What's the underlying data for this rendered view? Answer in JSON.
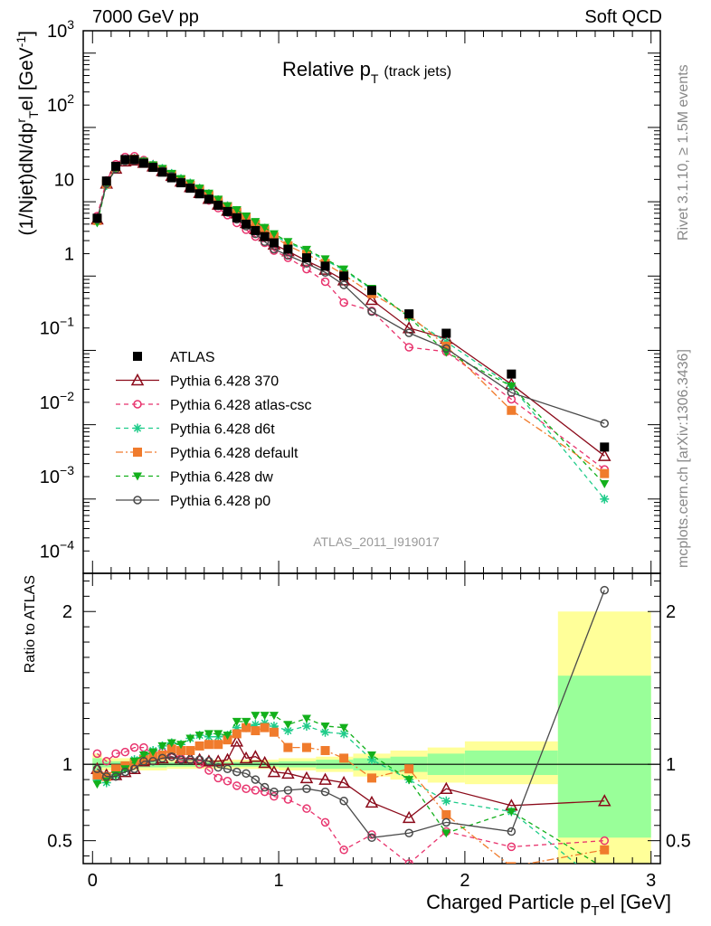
{
  "header": {
    "left": "7000 GeV pp",
    "right": "Soft QCD"
  },
  "side_labels": {
    "rivet": "Rivet 3.1.10, ≥ 1.5M events",
    "mcplots": "mcplots.cern.ch [arXiv:1306.3436]"
  },
  "colors": {
    "ATLAS": "#000000",
    "370": "#8b0a1a",
    "atlas-csc": "#e8336d",
    "d6t": "#1fcc8a",
    "default": "#f07b2c",
    "dw": "#13b01c",
    "p0": "#4a4a4a",
    "band_yellow": "#ffff99",
    "band_green": "#99ff99"
  },
  "chart_data": {
    "type": "line",
    "title_main": "Relative p",
    "title_sub": "T",
    "title_paren": "(track jets)",
    "analysis_id": "ATLAS_2011_I919017",
    "xlabel": "Charged Particle p",
    "xlabel_sub": "T",
    "xlabel_tail": "el [GeV]",
    "ylabel": "(1/Njet)dN/dp",
    "ylabel_sup": "r",
    "ylabel_sub": "T",
    "ylabel_tail": "el [GeV",
    "ylabel_exp": "-1",
    "ylabel_end": "]",
    "ratio_ylabel": "Ratio to ATLAS",
    "xlim": [
      -0.05,
      3.05
    ],
    "ylim": [
      5e-05,
      1000
    ],
    "yscale": "log",
    "ratio_ylim": [
      0.35,
      2.25
    ],
    "x_ticks": [
      "0",
      "1",
      "2",
      "3"
    ],
    "y_ticks": [
      "10^-4",
      "10^-3",
      "10^-2",
      "10^-1",
      "1",
      "10",
      "10^2",
      "10^3"
    ],
    "ratio_ticks": [
      "0.5",
      "1",
      "2"
    ],
    "legend_position": "center-left",
    "x": [
      0.025,
      0.075,
      0.125,
      0.175,
      0.225,
      0.275,
      0.325,
      0.375,
      0.425,
      0.475,
      0.525,
      0.575,
      0.625,
      0.675,
      0.725,
      0.775,
      0.825,
      0.875,
      0.925,
      0.975,
      1.05,
      1.15,
      1.25,
      1.35,
      1.5,
      1.7,
      1.9,
      2.25,
      2.75
    ],
    "series": [
      {
        "name": "ATLAS",
        "marker": "square-filled",
        "line": "none",
        "values": [
          3.0,
          9.5,
          15.0,
          18.5,
          18.5,
          16.5,
          14.5,
          12.5,
          10.5,
          9.0,
          7.6,
          6.4,
          5.4,
          4.5,
          3.7,
          3.05,
          2.5,
          2.05,
          1.7,
          1.4,
          1.15,
          0.88,
          0.68,
          0.5,
          0.32,
          0.155,
          0.085,
          0.024,
          0.0025
        ]
      },
      {
        "name": "Pythia 6.428 370",
        "marker": "triangle-open",
        "line": "solid",
        "values": [
          2.9,
          8.8,
          14.0,
          17.5,
          18.0,
          16.8,
          15.0,
          13.0,
          11.2,
          9.4,
          7.9,
          6.6,
          5.5,
          4.6,
          3.8,
          3.5,
          2.6,
          2.15,
          1.72,
          1.33,
          1.08,
          0.8,
          0.61,
          0.44,
          0.24,
          0.1,
          0.072,
          0.0175,
          0.0019
        ]
      },
      {
        "name": "Pythia 6.428 atlas-csc",
        "marker": "circle-open",
        "line": "dashed",
        "values": [
          3.2,
          9.7,
          16.0,
          20.0,
          20.5,
          18.2,
          15.5,
          13.5,
          11.0,
          9.4,
          7.8,
          6.4,
          5.2,
          4.1,
          3.3,
          2.6,
          2.1,
          1.7,
          1.4,
          1.1,
          0.88,
          0.62,
          0.42,
          0.22,
          0.17,
          0.055,
          0.048,
          0.011,
          0.00125
        ]
      },
      {
        "name": "Pythia 6.428 d6t",
        "marker": "star",
        "line": "dashed",
        "values": [
          2.7,
          8.3,
          14.0,
          18.0,
          19.0,
          17.5,
          15.8,
          14.0,
          12.0,
          10.2,
          8.9,
          7.6,
          6.4,
          5.3,
          4.4,
          3.8,
          3.1,
          2.6,
          2.2,
          1.75,
          1.4,
          1.1,
          0.82,
          0.6,
          0.33,
          0.14,
          0.065,
          0.0165,
          0.0005
        ]
      },
      {
        "name": "Pythia 6.428 default",
        "marker": "square-filled",
        "line": "dashdot",
        "values": [
          2.8,
          8.7,
          14.5,
          18.3,
          18.7,
          17.0,
          15.2,
          13.3,
          11.5,
          9.8,
          8.3,
          7.2,
          6.1,
          5.1,
          4.3,
          3.65,
          3.1,
          2.5,
          2.1,
          1.7,
          1.28,
          0.98,
          0.74,
          0.52,
          0.29,
          0.15,
          0.057,
          0.0078,
          0.0011
        ]
      },
      {
        "name": "Pythia 6.428 dw",
        "marker": "triangle-down-filled",
        "line": "dashed",
        "values": [
          2.6,
          8.5,
          14.0,
          17.9,
          18.9,
          17.5,
          15.6,
          14.0,
          12.0,
          10.2,
          8.9,
          7.6,
          6.5,
          5.4,
          4.4,
          3.9,
          3.2,
          2.7,
          2.25,
          1.85,
          1.45,
          1.14,
          0.85,
          0.62,
          0.34,
          0.14,
          0.047,
          0.0165,
          0.0008
        ]
      },
      {
        "name": "Pythia 6.428 p0",
        "marker": "circle-open",
        "line": "solid",
        "values": [
          2.9,
          8.7,
          13.8,
          17.6,
          17.9,
          16.8,
          14.8,
          13.0,
          11.0,
          9.3,
          7.8,
          6.6,
          5.5,
          4.4,
          3.6,
          2.9,
          2.35,
          1.85,
          1.45,
          1.15,
          0.95,
          0.74,
          0.56,
          0.38,
          0.166,
          0.086,
          0.053,
          0.0135,
          0.0052
        ]
      }
    ],
    "ratio_series": [
      {
        "name": "Pythia 6.428 370",
        "values": [
          0.97,
          0.93,
          0.93,
          0.95,
          0.97,
          1.02,
          1.03,
          1.04,
          1.07,
          1.04,
          1.04,
          1.03,
          1.02,
          1.02,
          1.03,
          1.15,
          1.04,
          1.05,
          1.01,
          0.95,
          0.94,
          0.91,
          0.9,
          0.88,
          0.75,
          0.65,
          0.84,
          0.73,
          0.76
        ]
      },
      {
        "name": "Pythia 6.428 atlas-csc",
        "values": [
          1.07,
          1.02,
          1.07,
          1.08,
          1.11,
          1.11,
          1.07,
          1.08,
          1.05,
          1.04,
          1.03,
          1.0,
          0.96,
          0.91,
          0.89,
          0.86,
          0.84,
          0.83,
          0.82,
          0.79,
          0.77,
          0.71,
          0.62,
          0.44,
          0.54,
          0.35,
          0.56,
          0.46,
          0.5
        ]
      },
      {
        "name": "Pythia 6.428 d6t",
        "values": [
          0.9,
          0.88,
          0.93,
          0.97,
          1.03,
          1.06,
          1.09,
          1.12,
          1.14,
          1.13,
          1.17,
          1.19,
          1.18,
          1.18,
          1.19,
          1.24,
          1.24,
          1.26,
          1.27,
          1.25,
          1.22,
          1.25,
          1.21,
          1.2,
          1.03,
          0.9,
          0.76,
          0.69,
          0.2
        ]
      },
      {
        "name": "Pythia 6.428 default",
        "values": [
          0.93,
          0.92,
          0.97,
          0.99,
          1.01,
          1.03,
          1.05,
          1.06,
          1.1,
          1.09,
          1.09,
          1.12,
          1.13,
          1.13,
          1.16,
          1.2,
          1.24,
          1.22,
          1.24,
          1.21,
          1.11,
          1.11,
          1.09,
          1.04,
          0.91,
          0.97,
          0.67,
          0.33,
          0.44
        ]
      },
      {
        "name": "Pythia 6.428 dw",
        "values": [
          0.87,
          0.89,
          0.93,
          0.97,
          1.02,
          1.06,
          1.08,
          1.12,
          1.14,
          1.13,
          1.17,
          1.19,
          1.2,
          1.2,
          1.19,
          1.28,
          1.28,
          1.32,
          1.32,
          1.32,
          1.26,
          1.3,
          1.25,
          1.24,
          1.06,
          0.9,
          0.55,
          0.69,
          0.32
        ]
      },
      {
        "name": "Pythia 6.428 p0",
        "values": [
          0.97,
          0.92,
          0.92,
          0.95,
          0.97,
          1.02,
          1.02,
          1.04,
          1.05,
          1.03,
          1.03,
          1.03,
          1.02,
          0.98,
          0.97,
          0.95,
          0.94,
          0.9,
          0.85,
          0.82,
          0.83,
          0.84,
          0.82,
          0.76,
          0.52,
          0.55,
          0.62,
          0.56,
          2.14
        ]
      }
    ],
    "ratio_bands": [
      {
        "x0": 0.0,
        "x1": 0.05,
        "green": [
          0.96,
          1.04
        ],
        "yellow": [
          0.93,
          1.07
        ]
      },
      {
        "x0": 0.05,
        "x1": 0.4,
        "green": [
          0.98,
          1.02
        ],
        "yellow": [
          0.96,
          1.04
        ]
      },
      {
        "x0": 0.4,
        "x1": 1.0,
        "green": [
          0.985,
          1.015
        ],
        "yellow": [
          0.97,
          1.03
        ]
      },
      {
        "x0": 1.0,
        "x1": 1.2,
        "green": [
          0.98,
          1.02
        ],
        "yellow": [
          0.96,
          1.04
        ]
      },
      {
        "x0": 1.2,
        "x1": 1.4,
        "green": [
          0.97,
          1.03
        ],
        "yellow": [
          0.95,
          1.05
        ]
      },
      {
        "x0": 1.4,
        "x1": 1.6,
        "green": [
          0.96,
          1.04
        ],
        "yellow": [
          0.92,
          1.07
        ]
      },
      {
        "x0": 1.6,
        "x1": 1.8,
        "green": [
          0.95,
          1.05
        ],
        "yellow": [
          0.9,
          1.09
        ]
      },
      {
        "x0": 1.8,
        "x1": 2.0,
        "green": [
          0.93,
          1.07
        ],
        "yellow": [
          0.88,
          1.11
        ]
      },
      {
        "x0": 2.0,
        "x1": 2.5,
        "green": [
          0.93,
          1.09
        ],
        "yellow": [
          0.87,
          1.15
        ]
      },
      {
        "x0": 2.5,
        "x1": 3.0,
        "green": [
          0.52,
          1.58
        ],
        "yellow": [
          0.35,
          2.0
        ]
      }
    ]
  }
}
